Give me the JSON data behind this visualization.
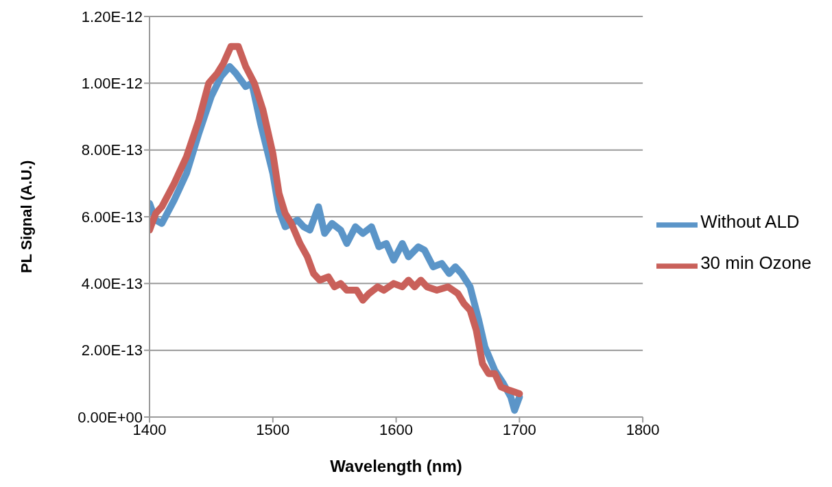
{
  "chart_data": {
    "type": "line",
    "xlabel": "Wavelength (nm)",
    "ylabel": "PL Signal (A.U.)",
    "xlim": [
      1400,
      1800
    ],
    "xticks": [
      1400,
      1500,
      1600,
      1700,
      1800
    ],
    "ylim": [
      0,
      1.2e-12
    ],
    "yticks": [
      {
        "value": 0,
        "label": "0.00E+00"
      },
      {
        "value": 2e-13,
        "label": "2.00E-13"
      },
      {
        "value": 4e-13,
        "label": "4.00E-13"
      },
      {
        "value": 6e-13,
        "label": "6.00E-13"
      },
      {
        "value": 8e-13,
        "label": "8.00E-13"
      },
      {
        "value": 1e-12,
        "label": "1.00E-12"
      },
      {
        "value": 1.2e-12,
        "label": "1.20E-12"
      }
    ],
    "grid": "y",
    "legend": "right",
    "marker": "none",
    "line_style": "solid",
    "series": [
      {
        "name": "Without ALD",
        "color": "#5b95c8",
        "x": [
          1400,
          1405,
          1410,
          1420,
          1430,
          1440,
          1450,
          1458,
          1465,
          1470,
          1478,
          1483,
          1490,
          1500,
          1505,
          1510,
          1515,
          1520,
          1525,
          1530,
          1537,
          1542,
          1548,
          1555,
          1560,
          1567,
          1573,
          1580,
          1586,
          1592,
          1598,
          1605,
          1610,
          1618,
          1623,
          1630,
          1637,
          1643,
          1648,
          1653,
          1660,
          1667,
          1672,
          1680,
          1687,
          1693,
          1696,
          1700
        ],
        "values": [
          6.4e-13,
          5.9e-13,
          5.8e-13,
          6.5e-13,
          7.3e-13,
          8.5e-13,
          9.6e-13,
          1.02e-12,
          1.05e-12,
          1.03e-12,
          9.9e-13,
          1e-12,
          8.8e-13,
          7.3e-13,
          6.2e-13,
          5.7e-13,
          5.8e-13,
          5.9e-13,
          5.7e-13,
          5.6e-13,
          6.3e-13,
          5.5e-13,
          5.8e-13,
          5.6e-13,
          5.2e-13,
          5.7e-13,
          5.5e-13,
          5.7e-13,
          5.1e-13,
          5.2e-13,
          4.7e-13,
          5.2e-13,
          4.8e-13,
          5.1e-13,
          5e-13,
          4.5e-13,
          4.6e-13,
          4.3e-13,
          4.5e-13,
          4.3e-13,
          3.9e-13,
          2.9e-13,
          2.1e-13,
          1.4e-13,
          1e-13,
          6e-14,
          2e-14,
          6e-14
        ]
      },
      {
        "name": "30 min Ozone",
        "color": "#c9605a",
        "x": [
          1400,
          1405,
          1410,
          1420,
          1430,
          1440,
          1448,
          1455,
          1460,
          1466,
          1472,
          1478,
          1485,
          1492,
          1500,
          1505,
          1510,
          1515,
          1522,
          1528,
          1533,
          1538,
          1545,
          1550,
          1555,
          1560,
          1568,
          1573,
          1578,
          1585,
          1590,
          1598,
          1605,
          1610,
          1615,
          1620,
          1625,
          1633,
          1642,
          1650,
          1655,
          1660,
          1665,
          1670,
          1675,
          1680,
          1685,
          1692,
          1700
        ],
        "values": [
          5.6e-13,
          6.1e-13,
          6.3e-13,
          7e-13,
          7.8e-13,
          8.9e-13,
          1e-12,
          1.03e-12,
          1.06e-12,
          1.11e-12,
          1.11e-12,
          1.05e-12,
          1e-12,
          9.2e-13,
          7.9e-13,
          6.7e-13,
          6.1e-13,
          5.8e-13,
          5.2e-13,
          4.8e-13,
          4.3e-13,
          4.1e-13,
          4.2e-13,
          3.9e-13,
          4e-13,
          3.8e-13,
          3.8e-13,
          3.5e-13,
          3.7e-13,
          3.9e-13,
          3.8e-13,
          4e-13,
          3.9e-13,
          4.1e-13,
          3.9e-13,
          4.1e-13,
          3.9e-13,
          3.8e-13,
          3.9e-13,
          3.7e-13,
          3.4e-13,
          3.2e-13,
          2.6e-13,
          1.6e-13,
          1.3e-13,
          1.3e-13,
          9e-14,
          8e-14,
          7e-14
        ]
      }
    ]
  }
}
